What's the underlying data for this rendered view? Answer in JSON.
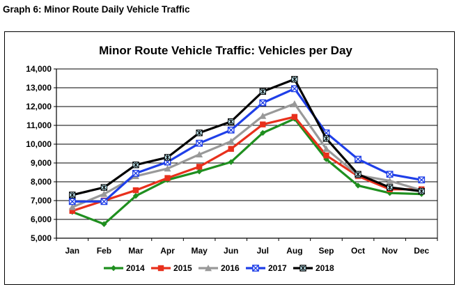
{
  "caption": "Graph 6:  Minor Route Daily Vehicle Traffic",
  "chart_data": {
    "type": "line",
    "title": "Minor Route Vehicle Traffic:  Vehicles per Day",
    "xlabel": "",
    "ylabel": "",
    "categories": [
      "Jan",
      "Feb",
      "Mar",
      "Apr",
      "May",
      "Jun",
      "Jul",
      "Aug",
      "Sep",
      "Oct",
      "Nov",
      "Dec"
    ],
    "ylim": [
      5000,
      14000
    ],
    "yticks": [
      5000,
      6000,
      7000,
      8000,
      9000,
      10000,
      11000,
      12000,
      13000,
      14000
    ],
    "ytick_labels": [
      "5,000",
      "6,000",
      "7,000",
      "8,000",
      "9,000",
      "10,000",
      "11,000",
      "12,000",
      "13,000",
      "14,000"
    ],
    "grid": "horizontal",
    "legend_position": "bottom",
    "series": [
      {
        "name": "2014",
        "color": "#1f8f1f",
        "marker": "diamond",
        "values": [
          6400,
          5750,
          7250,
          8100,
          8550,
          9050,
          10600,
          11350,
          9200,
          7800,
          7400,
          7350
        ]
      },
      {
        "name": "2015",
        "color": "#e8301c",
        "marker": "square",
        "values": [
          6450,
          7000,
          7550,
          8200,
          8800,
          9750,
          11050,
          11450,
          9400,
          8300,
          7600,
          7600
        ]
      },
      {
        "name": "2016",
        "color": "#999999",
        "marker": "triangle",
        "values": [
          6650,
          7350,
          8300,
          8700,
          9450,
          10150,
          11500,
          12150,
          9750,
          8350,
          8050,
          7550
        ]
      },
      {
        "name": "2017",
        "color": "#1f3fe8",
        "marker": "xsquare",
        "values": [
          6950,
          6950,
          8450,
          9050,
          10050,
          10750,
          12200,
          12950,
          10600,
          9200,
          8400,
          8100
        ]
      },
      {
        "name": "2018",
        "color": "#000000",
        "marker": "star",
        "values": [
          7300,
          7700,
          8900,
          9300,
          10600,
          11200,
          12800,
          13450,
          10300,
          8400,
          7700,
          7500
        ]
      }
    ]
  }
}
